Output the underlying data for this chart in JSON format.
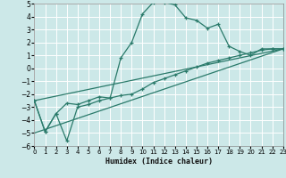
{
  "xlabel": "Humidex (Indice chaleur)",
  "background_color": "#cce8e8",
  "grid_color": "#ffffff",
  "line_color": "#2a7a6a",
  "xlim": [
    0,
    23
  ],
  "ylim": [
    -6,
    5
  ],
  "xticks": [
    0,
    1,
    2,
    3,
    4,
    5,
    6,
    7,
    8,
    9,
    10,
    11,
    12,
    13,
    14,
    15,
    16,
    17,
    18,
    19,
    20,
    21,
    22,
    23
  ],
  "yticks": [
    -6,
    -5,
    -4,
    -3,
    -2,
    -1,
    0,
    1,
    2,
    3,
    4,
    5
  ],
  "curve1_x": [
    0,
    1,
    2,
    3,
    4,
    5,
    6,
    7,
    8,
    9,
    10,
    11,
    12,
    13,
    14,
    15,
    16,
    17,
    18,
    19,
    20,
    21,
    22,
    23
  ],
  "curve1_y": [
    -2.5,
    -4.9,
    -3.5,
    -2.7,
    -2.8,
    -2.5,
    -2.2,
    -2.3,
    0.8,
    2.0,
    4.2,
    5.1,
    5.1,
    4.9,
    3.9,
    3.7,
    3.1,
    3.4,
    1.7,
    1.3,
    1.0,
    1.5,
    1.5,
    1.5
  ],
  "curve2_x": [
    0,
    1,
    2,
    3,
    4,
    5,
    6,
    7,
    8,
    9,
    10,
    11,
    12,
    13,
    14,
    15,
    16,
    17,
    18,
    19,
    20,
    21,
    22,
    23
  ],
  "curve2_y": [
    -2.5,
    -4.9,
    -3.5,
    -5.6,
    -3.0,
    -2.8,
    -2.5,
    -2.3,
    -2.1,
    -2.0,
    -1.6,
    -1.1,
    -0.8,
    -0.5,
    -0.2,
    0.1,
    0.4,
    0.6,
    0.8,
    1.0,
    1.2,
    1.4,
    1.5,
    1.5
  ],
  "line1_x": [
    0,
    23
  ],
  "line1_y": [
    -2.5,
    1.5
  ],
  "line2_x": [
    0,
    23
  ],
  "line2_y": [
    -5.0,
    1.5
  ]
}
